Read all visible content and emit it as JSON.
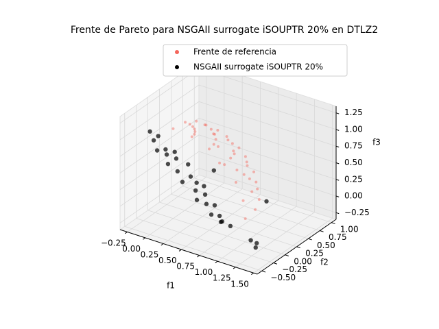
{
  "chart_data": {
    "type": "scatter3d",
    "title": "Frente de Pareto para NSGAII surrogate iSOUPTR 20% en DTLZ2",
    "xlabel": "f1",
    "ylabel": "f2",
    "zlabel": "f3",
    "xlim": [
      -0.35,
      1.55
    ],
    "ylim": [
      -0.6,
      1.1
    ],
    "zlim": [
      -0.35,
      1.35
    ],
    "xticks": [
      {
        "value": -0.25,
        "label": "−0.25"
      },
      {
        "value": 0,
        "label": "0.00"
      },
      {
        "value": 0.25,
        "label": "0.25"
      },
      {
        "value": 0.5,
        "label": "0.50"
      },
      {
        "value": 0.75,
        "label": "0.75"
      },
      {
        "value": 1,
        "label": "1.00"
      },
      {
        "value": 1.25,
        "label": "1.25"
      },
      {
        "value": 1.5,
        "label": "1.50"
      }
    ],
    "yticks": [
      {
        "value": -0.5,
        "label": "−0.50"
      },
      {
        "value": -0.25,
        "label": "−0.25"
      },
      {
        "value": 0,
        "label": "0.00"
      },
      {
        "value": 0.25,
        "label": "0.25"
      },
      {
        "value": 0.5,
        "label": "0.50"
      },
      {
        "value": 0.75,
        "label": "0.75"
      },
      {
        "value": 1,
        "label": "1.00"
      }
    ],
    "zticks": [
      {
        "value": -0.25,
        "label": "−0.25"
      },
      {
        "value": 0,
        "label": "0.00"
      },
      {
        "value": 0.25,
        "label": "0.25"
      },
      {
        "value": 0.5,
        "label": "0.50"
      },
      {
        "value": 0.75,
        "label": "0.75"
      },
      {
        "value": 1,
        "label": "1.00"
      },
      {
        "value": 1.25,
        "label": "1.25"
      }
    ],
    "grid": true,
    "legend": "upper center",
    "series": [
      {
        "name": "Frente de referencia",
        "color": "#f4665c",
        "x": [
          1,
          0.97,
          0.87,
          0.71,
          0.5,
          0.26,
          0,
          0.97,
          0.93,
          0.84,
          0.68,
          0.48,
          0.25,
          0,
          0.87,
          0.84,
          0.75,
          0.61,
          0.43,
          0.22,
          0,
          0.71,
          0.68,
          0.61,
          0.5,
          0.35,
          0.18,
          0,
          0.5,
          0.48,
          0.43,
          0.35,
          0.25,
          0.13,
          0,
          0.26,
          0.25,
          0.22,
          0.18,
          0.13,
          0.07,
          0,
          0
        ],
        "y": [
          0,
          0.26,
          0.5,
          0.71,
          0.87,
          0.97,
          1,
          0,
          0.25,
          0.48,
          0.68,
          0.84,
          0.93,
          0.97,
          0,
          0.22,
          0.43,
          0.61,
          0.75,
          0.84,
          0.87,
          0,
          0.18,
          0.35,
          0.5,
          0.61,
          0.68,
          0.71,
          0,
          0.13,
          0.25,
          0.35,
          0.43,
          0.48,
          0.5,
          0,
          0.07,
          0.13,
          0.18,
          0.22,
          0.25,
          0.26,
          0
        ],
        "z": [
          0,
          0,
          0,
          0,
          0,
          0,
          0,
          0.26,
          0.26,
          0.26,
          0.26,
          0.26,
          0.26,
          0.26,
          0.5,
          0.5,
          0.5,
          0.5,
          0.5,
          0.5,
          0.5,
          0.71,
          0.71,
          0.71,
          0.71,
          0.71,
          0.71,
          0.71,
          0.87,
          0.87,
          0.87,
          0.87,
          0.87,
          0.87,
          0.87,
          0.97,
          0.97,
          0.97,
          0.97,
          0.97,
          0.97,
          0.97,
          1
        ]
      },
      {
        "name": "NSGAII surrogate iSOUPTR 20%",
        "color": "#000000",
        "x": [
          0.0,
          0.02,
          0.05,
          0.1,
          0.12,
          0.2,
          0.25,
          0.3,
          0.35,
          0.4,
          0.45,
          0.5,
          0.55,
          0.6,
          0.62,
          0.65,
          0.7,
          0.75,
          0.8,
          0.85,
          0.9,
          0.95,
          1.0,
          1.05,
          1.3,
          1.35,
          1.4,
          0.15,
          0.5,
          1.1
        ],
        "y": [
          -0.5,
          -0.45,
          -0.4,
          -0.5,
          -0.35,
          -0.45,
          -0.5,
          -0.4,
          -0.45,
          -0.3,
          -0.5,
          -0.4,
          -0.35,
          -0.45,
          -0.3,
          -0.5,
          -0.4,
          -0.45,
          -0.35,
          -0.5,
          -0.4,
          -0.45,
          -0.5,
          -0.4,
          -0.35,
          -0.3,
          -0.4,
          -0.2,
          0.1,
          0.3
        ],
        "z": [
          1.2,
          1.05,
          1.1,
          0.95,
          0.9,
          0.9,
          0.8,
          0.85,
          0.7,
          0.75,
          0.6,
          0.65,
          0.55,
          0.5,
          0.5,
          0.4,
          0.45,
          0.35,
          0.3,
          0.25,
          0.2,
          0.15,
          0.2,
          0.1,
          -0.05,
          -0.1,
          -0.1,
          0.8,
          0.5,
          0.15
        ]
      }
    ]
  }
}
